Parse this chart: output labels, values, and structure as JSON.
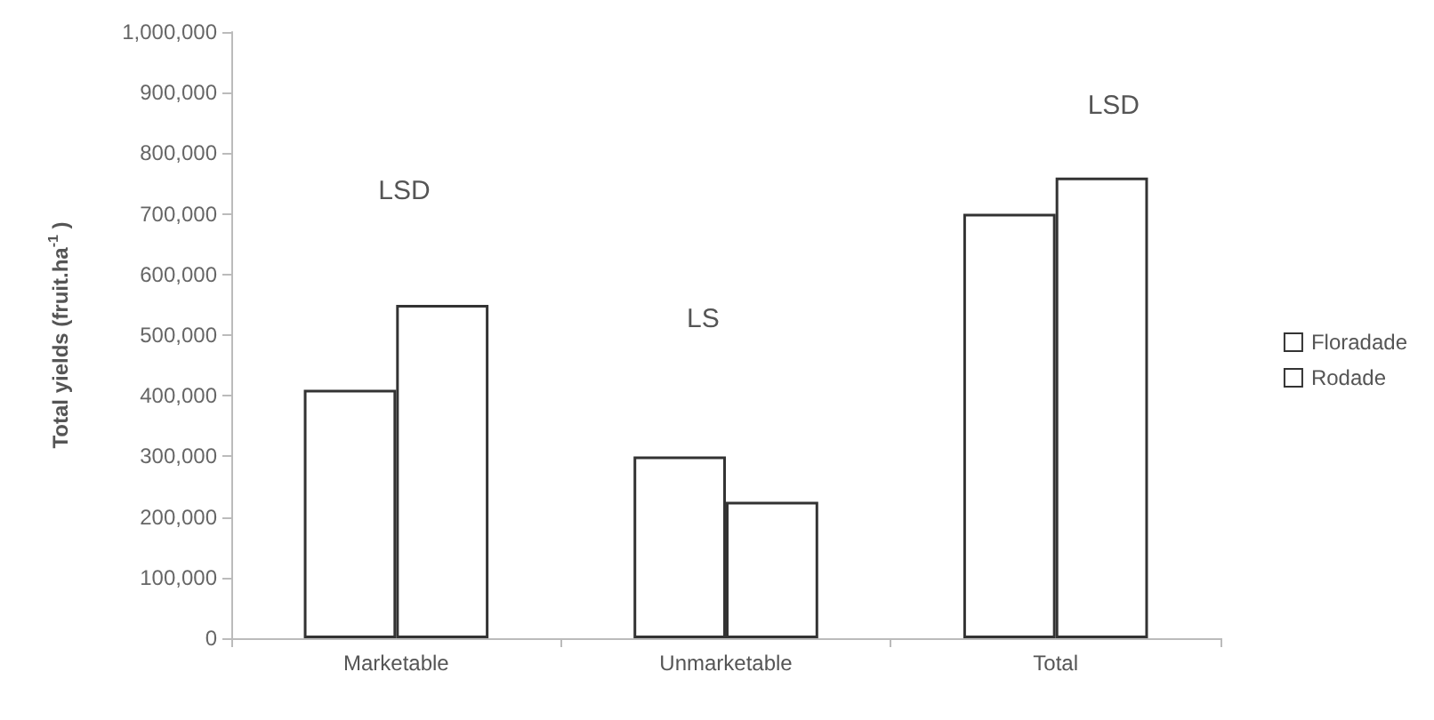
{
  "chart_data": {
    "type": "bar",
    "ylabel": "Total yields (fruit.ha$^{-1}$ )",
    "categories": [
      "Marketable",
      "Unmarketable",
      "Total"
    ],
    "series": [
      {
        "name": "Floradade",
        "color": "#ffffff",
        "values": [
          410000,
          300000,
          700000
        ]
      },
      {
        "name": "Rodade",
        "color": "#ffffff",
        "values": [
          550000,
          225000,
          760000
        ]
      }
    ],
    "ylim": [
      0,
      1000000
    ],
    "yticks": [
      {
        "value": 0,
        "label": "0"
      },
      {
        "value": 100000,
        "label": "100,000"
      },
      {
        "value": 200000,
        "label": "200,000"
      },
      {
        "value": 300000,
        "label": "300,000"
      },
      {
        "value": 400000,
        "label": "400,000"
      },
      {
        "value": 500000,
        "label": "500,000"
      },
      {
        "value": 600000,
        "label": "600,000"
      },
      {
        "value": 700000,
        "label": "700,000"
      },
      {
        "value": 800000,
        "label": "800,000"
      },
      {
        "value": 900000,
        "label": "900,000"
      },
      {
        "value": 1000000,
        "label": "1,000,000"
      }
    ],
    "annotations": [
      "LSD",
      "LS",
      "LSD"
    ],
    "grid": false,
    "legend": "right"
  }
}
